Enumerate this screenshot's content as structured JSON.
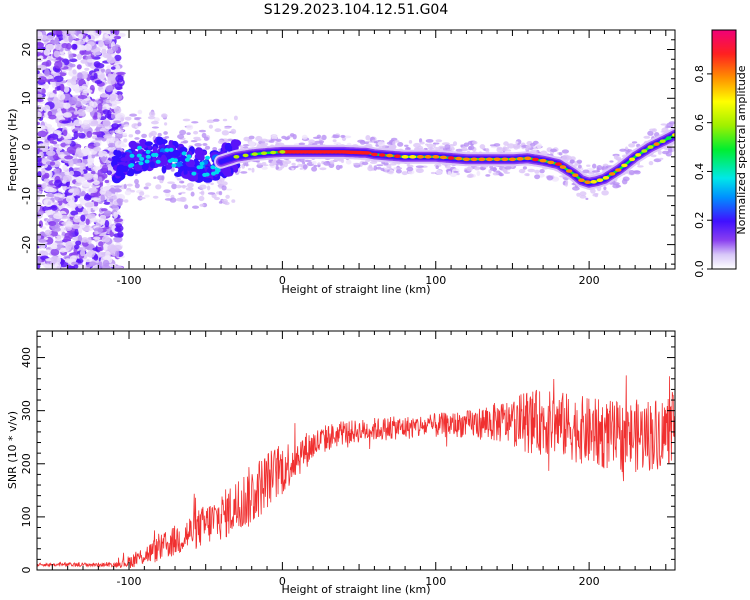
{
  "chart_data": [
    {
      "type": "heatmap",
      "title": "S129.2023.104.12.51.G04",
      "xlabel": "Height of straight line (km)",
      "ylabel": "Frequency (Hz)",
      "xlim": [
        -160,
        256
      ],
      "ylim": [
        -25,
        24
      ],
      "xticks": [
        -100,
        0,
        100,
        200
      ],
      "yticks": [
        -20,
        -10,
        0,
        10,
        20
      ],
      "grid": false,
      "ridge": {
        "x": [
          -110,
          -100,
          -90,
          -80,
          -70,
          -60,
          -50,
          -40,
          -30,
          -20,
          -10,
          0,
          20,
          40,
          55,
          60,
          80,
          100,
          120,
          140,
          150,
          160,
          170,
          180,
          190,
          195,
          200,
          205,
          210,
          220,
          230,
          240,
          250,
          256
        ],
        "y": [
          -4,
          -2.5,
          -1.5,
          -1.5,
          -2.5,
          -3.5,
          -4,
          -3,
          -2,
          -1.5,
          -1.2,
          -1,
          -1,
          -1,
          -1.2,
          -1.5,
          -2,
          -2,
          -2.5,
          -2.5,
          -2.5,
          -2.3,
          -2.8,
          -3.5,
          -5.5,
          -6.8,
          -7.3,
          -7,
          -6.5,
          -4.5,
          -2,
          0,
          1.5,
          2.5
        ]
      },
      "colorbar": {
        "label": "Normalized spectral amplitude",
        "range": [
          0,
          0.98
        ],
        "ticks": [
          0.0,
          0.2,
          0.4,
          0.6,
          0.8
        ]
      }
    },
    {
      "type": "line",
      "xlabel": "Height of straight line (km)",
      "ylabel": "SNR (10 * v/v)",
      "xlim": [
        -160,
        256
      ],
      "ylim": [
        0,
        450
      ],
      "xticks": [
        -100,
        0,
        100,
        200
      ],
      "yticks": [
        0,
        100,
        200,
        300,
        400
      ],
      "color": "#f03030",
      "envelope": {
        "x": [
          -160,
          -110,
          -100,
          -90,
          -80,
          -70,
          -60,
          -50,
          -40,
          -30,
          -20,
          -10,
          0,
          10,
          20,
          30,
          40,
          60,
          80,
          100,
          120,
          140,
          160,
          180,
          200,
          220,
          240,
          256
        ],
        "y": [
          10,
          10,
          15,
          28,
          40,
          55,
          70,
          85,
          100,
          120,
          140,
          170,
          190,
          215,
          235,
          250,
          258,
          265,
          268,
          272,
          275,
          278,
          280,
          275,
          260,
          250,
          255,
          265
        ]
      },
      "noise_amplitude": {
        "x": [
          -160,
          -110,
          -100,
          -80,
          -60,
          -40,
          -20,
          0,
          20,
          40,
          80,
          120,
          150,
          160,
          200,
          240,
          256
        ],
        "y": [
          3,
          4,
          12,
          25,
          35,
          45,
          60,
          50,
          30,
          22,
          22,
          25,
          45,
          60,
          65,
          70,
          65
        ]
      }
    }
  ]
}
